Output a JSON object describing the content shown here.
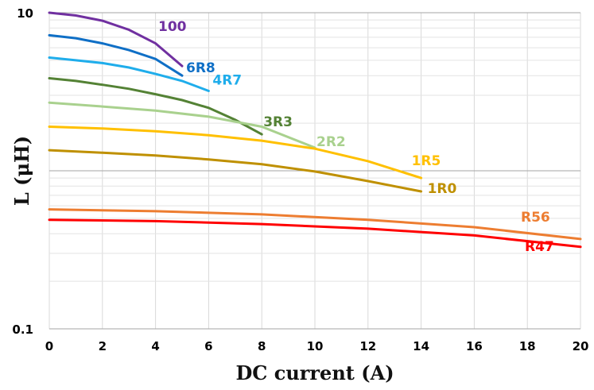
{
  "chart_data": {
    "type": "line",
    "title": "",
    "xlabel": "DC current (A)",
    "ylabel": "L (μH)",
    "x_scale": "linear",
    "y_scale": "log",
    "xlim": [
      0,
      20
    ],
    "ylim": [
      0.1,
      10
    ],
    "x_ticks": [
      "0",
      "2",
      "4",
      "6",
      "8",
      "10",
      "12",
      "14",
      "16",
      "18",
      "20"
    ],
    "y_ticks": [
      "0.1",
      "",
      "10"
    ],
    "grid": true,
    "legend": "none (series labels placed at line ends)",
    "series": [
      {
        "name": "100",
        "color": "#7030A0",
        "points": [
          [
            0,
            10.0
          ],
          [
            1,
            9.6
          ],
          [
            2,
            8.9
          ],
          [
            3,
            7.8
          ],
          [
            4,
            6.4
          ],
          [
            5,
            4.6
          ]
        ]
      },
      {
        "name": "6R8",
        "color": "#0F6FC6",
        "points": [
          [
            0,
            7.2
          ],
          [
            1,
            6.9
          ],
          [
            2,
            6.4
          ],
          [
            3,
            5.8
          ],
          [
            4,
            5.1
          ],
          [
            5,
            4.0
          ]
        ]
      },
      {
        "name": "4R7",
        "color": "#1FADEB",
        "points": [
          [
            0,
            5.2
          ],
          [
            1,
            5.0
          ],
          [
            2,
            4.8
          ],
          [
            3,
            4.5
          ],
          [
            4,
            4.1
          ],
          [
            5,
            3.7
          ],
          [
            6,
            3.2
          ]
        ]
      },
      {
        "name": "3R3",
        "color": "#548235",
        "points": [
          [
            0,
            3.85
          ],
          [
            1,
            3.7
          ],
          [
            2,
            3.5
          ],
          [
            3,
            3.3
          ],
          [
            4,
            3.05
          ],
          [
            5,
            2.8
          ],
          [
            6,
            2.5
          ],
          [
            7,
            2.1
          ],
          [
            8,
            1.7
          ]
        ]
      },
      {
        "name": "2R2",
        "color": "#A9D18E",
        "points": [
          [
            0,
            2.7
          ],
          [
            2,
            2.55
          ],
          [
            4,
            2.4
          ],
          [
            6,
            2.2
          ],
          [
            8,
            1.9
          ],
          [
            10,
            1.4
          ]
        ]
      },
      {
        "name": "1R5",
        "color": "#FFC000",
        "points": [
          [
            0,
            1.9
          ],
          [
            2,
            1.85
          ],
          [
            4,
            1.78
          ],
          [
            6,
            1.68
          ],
          [
            8,
            1.55
          ],
          [
            10,
            1.38
          ],
          [
            12,
            1.15
          ],
          [
            14,
            0.9
          ]
        ]
      },
      {
        "name": "1R0",
        "color": "#BF9000",
        "points": [
          [
            0,
            1.35
          ],
          [
            2,
            1.3
          ],
          [
            4,
            1.25
          ],
          [
            6,
            1.18
          ],
          [
            8,
            1.1
          ],
          [
            10,
            0.99
          ],
          [
            12,
            0.86
          ],
          [
            14,
            0.74
          ]
        ]
      },
      {
        "name": "R56",
        "color": "#ED7D31",
        "points": [
          [
            0,
            0.57
          ],
          [
            4,
            0.555
          ],
          [
            8,
            0.53
          ],
          [
            12,
            0.49
          ],
          [
            16,
            0.44
          ],
          [
            20,
            0.37
          ]
        ]
      },
      {
        "name": "R47",
        "color": "#FF0000",
        "points": [
          [
            0,
            0.49
          ],
          [
            4,
            0.48
          ],
          [
            8,
            0.46
          ],
          [
            12,
            0.43
          ],
          [
            16,
            0.39
          ],
          [
            20,
            0.33
          ]
        ]
      }
    ]
  }
}
